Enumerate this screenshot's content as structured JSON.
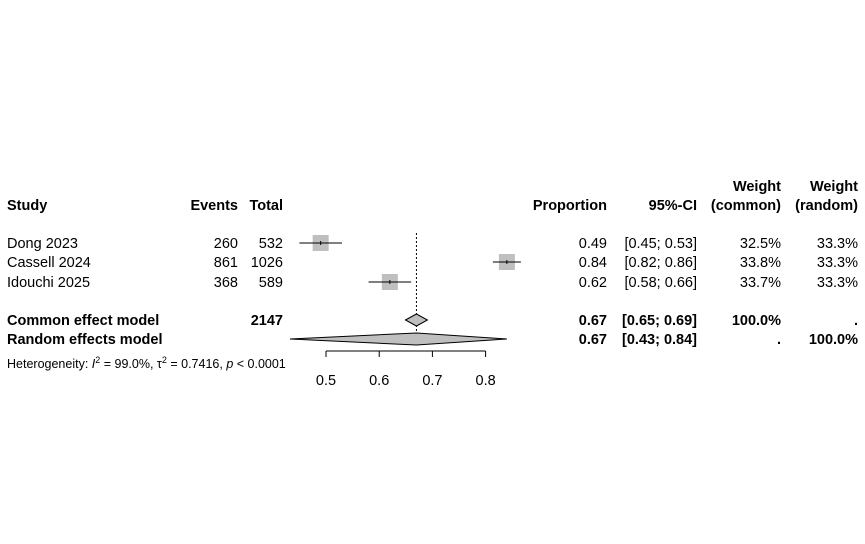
{
  "headers": {
    "study": "Study",
    "events": "Events",
    "total": "Total",
    "proportion": "Proportion",
    "ci": "95%-CI",
    "weight_common_1": "Weight",
    "weight_common_2": "(common)",
    "weight_random_1": "Weight",
    "weight_random_2": "(random)"
  },
  "summary": {
    "common": {
      "label": "Common effect model",
      "total": "2147",
      "proportion": "0.67",
      "ci": "[0.65; 0.69]",
      "weight_common": "100.0%",
      "weight_random": "."
    },
    "random": {
      "label": "Random effects model",
      "proportion": "0.67",
      "ci": "[0.43; 0.84]",
      "weight_common": ".",
      "weight_random": "100.0%"
    }
  },
  "heterogeneity": {
    "prefix": "Heterogeneity: ",
    "i2_sym": "I",
    "i2_sup": "2",
    "i2_val": " = 99.0%, ",
    "tau_sym": "τ",
    "tau_sup": "2",
    "tau_val": " = 0.7416, ",
    "p_sym": "p",
    "p_val": " < 0.0001"
  },
  "chart_data": {
    "type": "forest",
    "axis": {
      "ticks": [
        0.5,
        0.6,
        0.7,
        0.8
      ],
      "tick_labels": [
        "0.5",
        "0.6",
        "0.7",
        "0.8"
      ],
      "reference_line": 0.67
    },
    "studies": [
      {
        "study": "Dong 2023",
        "events": "260",
        "total": "532",
        "proportion": 0.49,
        "ci_low": 0.45,
        "ci_high": 0.53,
        "weight_common": 32.5,
        "weight_random": 33.3,
        "proportion_label": "0.49",
        "ci_label": "[0.45; 0.53]",
        "weight_common_label": "32.5%",
        "weight_random_label": "33.3%"
      },
      {
        "study": "Cassell 2024",
        "events": "861",
        "total": "1026",
        "proportion": 0.84,
        "ci_low": 0.82,
        "ci_high": 0.86,
        "weight_common": 33.8,
        "weight_random": 33.3,
        "proportion_label": "0.84",
        "ci_label": "[0.82; 0.86]",
        "weight_common_label": "33.8%",
        "weight_random_label": "33.3%"
      },
      {
        "study": "Idouchi 2025",
        "events": "368",
        "total": "589",
        "proportion": 0.62,
        "ci_low": 0.58,
        "ci_high": 0.66,
        "weight_common": 33.7,
        "weight_random": 33.3,
        "proportion_label": "0.62",
        "ci_label": "[0.58; 0.66]",
        "weight_common_label": "33.7%",
        "weight_random_label": "33.3%"
      }
    ],
    "common_effect": {
      "estimate": 0.67,
      "ci_low": 0.65,
      "ci_high": 0.69
    },
    "random_effects": {
      "estimate": 0.67,
      "ci_low": 0.43,
      "ci_high": 0.84
    },
    "colors": {
      "square": "#bfbfbf",
      "diamond": "#bfbfbf",
      "line": "#000000"
    }
  }
}
